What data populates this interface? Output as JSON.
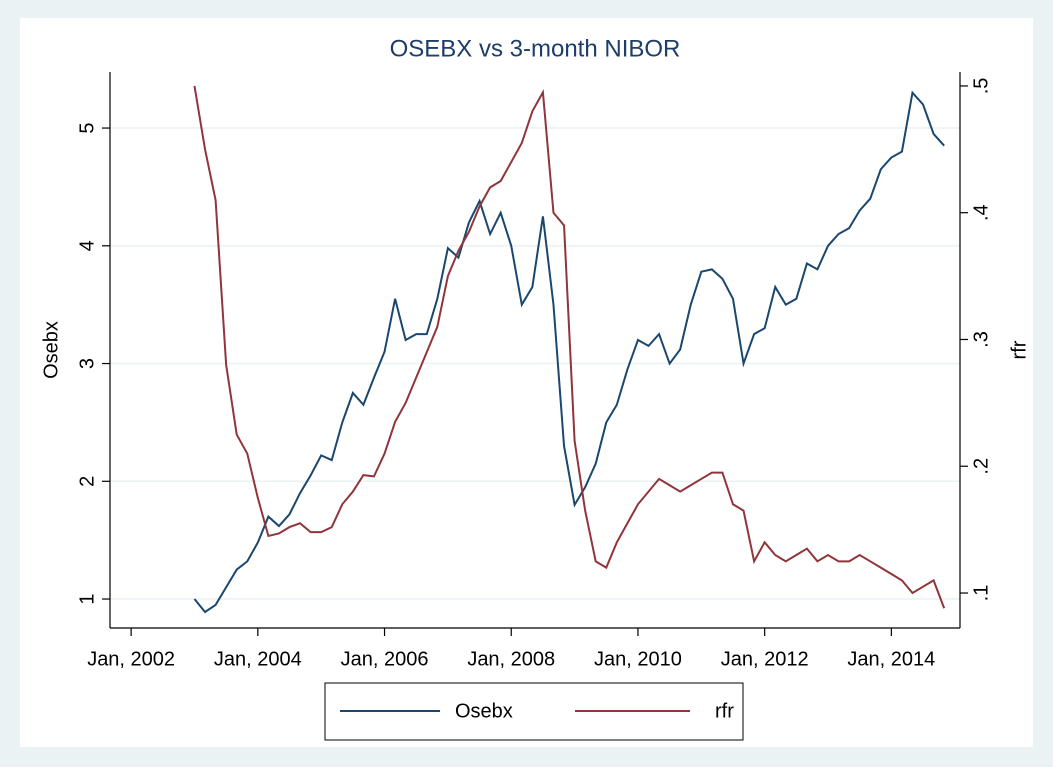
{
  "chart_data": {
    "type": "line",
    "title": "OSEBX vs 3-month NIBOR",
    "x": [
      "2003-01",
      "2003-03",
      "2003-05",
      "2003-07",
      "2003-09",
      "2003-11",
      "2004-01",
      "2004-03",
      "2004-05",
      "2004-07",
      "2004-09",
      "2004-11",
      "2005-01",
      "2005-03",
      "2005-05",
      "2005-07",
      "2005-09",
      "2005-11",
      "2006-01",
      "2006-03",
      "2006-05",
      "2006-07",
      "2006-09",
      "2006-11",
      "2007-01",
      "2007-03",
      "2007-05",
      "2007-07",
      "2007-09",
      "2007-11",
      "2008-01",
      "2008-03",
      "2008-05",
      "2008-07",
      "2008-09",
      "2008-11",
      "2009-01",
      "2009-03",
      "2009-05",
      "2009-07",
      "2009-09",
      "2009-11",
      "2010-01",
      "2010-03",
      "2010-05",
      "2010-07",
      "2010-09",
      "2010-11",
      "2011-01",
      "2011-03",
      "2011-05",
      "2011-07",
      "2011-09",
      "2011-11",
      "2012-01",
      "2012-03",
      "2012-05",
      "2012-07",
      "2012-09",
      "2012-11",
      "2013-01",
      "2013-03",
      "2013-05",
      "2013-07",
      "2013-09",
      "2013-11",
      "2014-01",
      "2014-03",
      "2014-05",
      "2014-07",
      "2014-09",
      "2014-11"
    ],
    "series": [
      {
        "name": "Osebx",
        "color": "#1a476f",
        "axis": "y",
        "values": [
          1.0,
          0.89,
          0.95,
          1.1,
          1.25,
          1.32,
          1.48,
          1.7,
          1.62,
          1.72,
          1.9,
          2.05,
          2.22,
          2.18,
          2.5,
          2.75,
          2.65,
          2.88,
          3.1,
          3.55,
          3.2,
          3.25,
          3.25,
          3.55,
          3.98,
          3.9,
          4.2,
          4.38,
          4.1,
          4.28,
          4.0,
          3.5,
          3.65,
          4.25,
          3.5,
          2.3,
          1.8,
          1.95,
          2.15,
          2.5,
          2.65,
          2.95,
          3.2,
          3.15,
          3.25,
          3.0,
          3.12,
          3.5,
          3.78,
          3.8,
          3.72,
          3.55,
          3.0,
          3.25,
          3.3,
          3.65,
          3.5,
          3.55,
          3.85,
          3.8,
          4.0,
          4.1,
          4.15,
          4.3,
          4.4,
          4.65,
          4.75,
          4.8,
          5.3,
          5.2,
          4.95,
          4.85
        ]
      },
      {
        "name": "rfr",
        "color": "#90353b",
        "axis": "y2",
        "values": [
          0.5,
          0.45,
          0.41,
          0.28,
          0.225,
          0.21,
          0.175,
          0.145,
          0.147,
          0.152,
          0.155,
          0.148,
          0.148,
          0.152,
          0.17,
          0.18,
          0.193,
          0.192,
          0.21,
          0.235,
          0.25,
          0.27,
          0.29,
          0.31,
          0.35,
          0.37,
          0.385,
          0.405,
          0.42,
          0.425,
          0.44,
          0.455,
          0.48,
          0.495,
          0.4,
          0.39,
          0.22,
          0.165,
          0.125,
          0.12,
          0.14,
          0.155,
          0.17,
          0.18,
          0.19,
          0.185,
          0.18,
          0.185,
          0.19,
          0.195,
          0.195,
          0.17,
          0.165,
          0.125,
          0.14,
          0.13,
          0.125,
          0.13,
          0.135,
          0.125,
          0.13,
          0.125,
          0.125,
          0.13,
          0.125,
          0.12,
          0.115,
          0.11,
          0.1,
          0.105,
          0.11,
          0.088
        ]
      }
    ],
    "xlim": [
      "2001-09",
      "2015-02"
    ],
    "xticks": [
      {
        "value": "2002-01",
        "label": "Jan, 2002"
      },
      {
        "value": "2004-01",
        "label": "Jan, 2004"
      },
      {
        "value": "2006-01",
        "label": "Jan, 2006"
      },
      {
        "value": "2008-01",
        "label": "Jan, 2008"
      },
      {
        "value": "2010-01",
        "label": "Jan, 2010"
      },
      {
        "value": "2012-01",
        "label": "Jan, 2012"
      },
      {
        "value": "2014-01",
        "label": "Jan, 2014"
      }
    ],
    "ylim": [
      0.754,
      5.476
    ],
    "yticks": [
      1,
      2,
      3,
      4,
      5
    ],
    "ylabel": "Osebx",
    "y2lim": [
      0.0724,
      0.511
    ],
    "y2ticks": [
      {
        "value": 0.1,
        "label": ".1"
      },
      {
        "value": 0.2,
        "label": ".2"
      },
      {
        "value": 0.3,
        "label": ".3"
      },
      {
        "value": 0.4,
        "label": ".4"
      },
      {
        "value": 0.5,
        "label": ".5"
      }
    ],
    "y2label": "rfr",
    "grid": true,
    "legend": "bottom"
  }
}
